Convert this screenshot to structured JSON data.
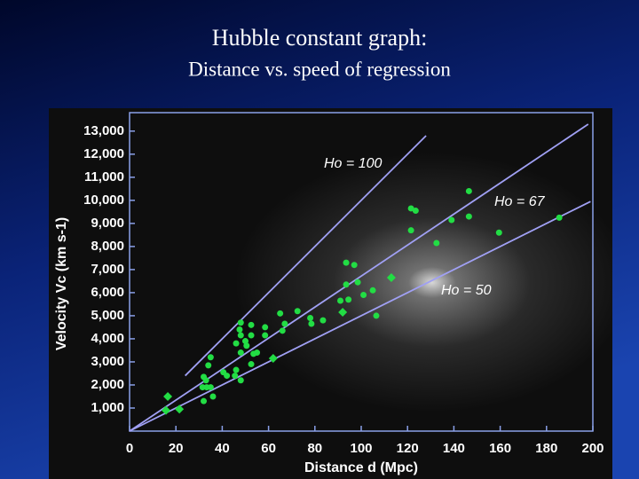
{
  "chart_data": {
    "type": "scatter",
    "title": "Hubble constant graph:",
    "subtitle": "Distance vs. speed of regression",
    "x_label": "Distance d (Mpc)",
    "y_label": "Velocity Vc (km s-1)",
    "xlim": [
      0,
      200
    ],
    "ylim": [
      0,
      13800
    ],
    "xticks": [
      0,
      20,
      40,
      60,
      80,
      100,
      120,
      140,
      160,
      180,
      200
    ],
    "yticks": [
      {
        "value": 1000,
        "label": "1,000"
      },
      {
        "value": 2000,
        "label": "2,000"
      },
      {
        "value": 3000,
        "label": "3,000"
      },
      {
        "value": 4000,
        "label": "4,000"
      },
      {
        "value": 5000,
        "label": "5,000"
      },
      {
        "value": 6000,
        "label": "6,000"
      },
      {
        "value": 7000,
        "label": "7,000"
      },
      {
        "value": 8000,
        "label": "8,000"
      },
      {
        "value": 9000,
        "label": "9,000"
      },
      {
        "value": 10000,
        "label": "10,000"
      },
      {
        "value": 11000,
        "label": "11,000"
      },
      {
        "value": 12000,
        "label": "12,000"
      },
      {
        "value": 13000,
        "label": "13,000"
      }
    ],
    "series": [
      {
        "type": "line",
        "name": "Ho = 100",
        "color": "#a0a0f4",
        "x": [
          24,
          128
        ],
        "values": [
          2400,
          12800
        ]
      },
      {
        "type": "line",
        "name": "Ho = 67",
        "color": "#a0a0f4",
        "x": [
          0,
          198
        ],
        "values": [
          0,
          13300
        ]
      },
      {
        "type": "line",
        "name": "Ho = 50",
        "color": "#a0a0f4",
        "x": [
          0,
          199
        ],
        "values": [
          0,
          9950
        ]
      },
      {
        "type": "scatter",
        "marker": "diamond",
        "color": "#22dd44",
        "x": [
          16.5,
          15.7,
          21.5,
          62,
          92,
          113
        ],
        "values": [
          1500,
          900,
          950,
          3150,
          5150,
          6650
        ]
      },
      {
        "type": "scatter",
        "marker": "circle",
        "color": "#22dd44",
        "x": [
          32,
          36,
          31.5,
          33.3,
          35,
          33,
          35,
          34,
          32,
          40.5,
          42,
          45.5,
          48,
          46,
          48,
          50.5,
          48,
          46,
          47.5,
          50,
          52.5,
          52.5,
          53.5,
          52.5,
          55,
          48,
          58.5,
          58.5,
          66,
          65,
          67,
          72.5,
          78,
          78.5,
          83.5,
          91,
          93.5,
          97,
          93.5,
          98.5,
          94.5,
          101,
          105,
          106.5,
          121.5,
          123.5,
          121.5,
          132.5,
          139,
          146.5,
          146.5,
          159.5,
          185.5
        ],
        "values": [
          1300,
          1500,
          1900,
          1900,
          1900,
          2200,
          3200,
          2850,
          2350,
          2550,
          2400,
          2400,
          2200,
          2650,
          3400,
          3700,
          4150,
          3800,
          4400,
          3900,
          4150,
          4600,
          3350,
          2900,
          3400,
          4700,
          4500,
          4150,
          4350,
          5100,
          4650,
          5200,
          4900,
          4650,
          4800,
          5650,
          7300,
          7200,
          6350,
          6450,
          5700,
          5900,
          6100,
          5000,
          9650,
          9550,
          8700,
          8150,
          9150,
          9300,
          10400,
          8600,
          9250
        ]
      }
    ]
  }
}
